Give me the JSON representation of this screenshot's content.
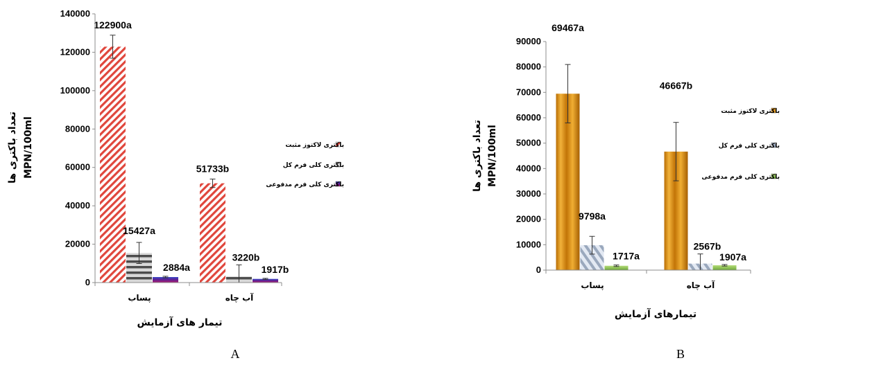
{
  "chart_data": [
    {
      "type": "bar",
      "panel_label": "A",
      "categories": [
        "پساب",
        "آب چاه"
      ],
      "xlabel": "تیمار های آزمایش",
      "ylabel_line1": "تعداد باکتری ها",
      "ylabel_line2": "MPN/100ml",
      "ylim": [
        0,
        140000
      ],
      "yticks": [
        0,
        20000,
        40000,
        60000,
        80000,
        100000,
        120000,
        140000
      ],
      "grid": false,
      "legend_position": "right",
      "series": [
        {
          "name": "باکتری لاکتوز مثبت",
          "color": "#e0463c",
          "pattern": "diagonal-hatch",
          "values": [
            122900,
            51733
          ],
          "errors": [
            6000,
            2200
          ],
          "labels": [
            "122900a",
            "51733b"
          ]
        },
        {
          "name": "باکتری کلی فرم کل",
          "color": "#7a7a7a",
          "pattern": "horizontal-stripes",
          "values": [
            15427,
            3220
          ],
          "errors": [
            5500,
            6000
          ],
          "labels": [
            "15427a",
            "3220b"
          ]
        },
        {
          "name": "باکتری کلی فرم مدفوعی",
          "color": "#5a2296",
          "pattern": "solid",
          "values": [
            2884,
            1917
          ],
          "errors": [
            400,
            300
          ],
          "labels": [
            "2884a",
            "1917b"
          ]
        }
      ]
    },
    {
      "type": "bar",
      "panel_label": "B",
      "categories": [
        "پساب",
        "آب چاه"
      ],
      "xlabel": "تیمارهای آزمایش",
      "ylabel_line1": "تعداد باکتری ها",
      "ylabel_line2": "MPN/100ml",
      "ylim": [
        0,
        90000
      ],
      "yticks": [
        0,
        10000,
        20000,
        30000,
        40000,
        50000,
        60000,
        70000,
        80000,
        90000
      ],
      "grid": false,
      "legend_position": "right",
      "series": [
        {
          "name": "باکتری لاکتوز مثبت",
          "color": "#d88a0c",
          "pattern": "vertical-gradient",
          "values": [
            69467,
            46667
          ],
          "errors": [
            11500,
            11500
          ],
          "labels": [
            "69467a",
            "46667b"
          ]
        },
        {
          "name": "باکتری کلی فرم کل",
          "color": "#5b86c4",
          "pattern": "diagonal-gradient",
          "values": [
            9798,
            2567
          ],
          "errors": [
            3500,
            3800
          ],
          "labels": [
            "9798a",
            "2567b"
          ]
        },
        {
          "name": "باکتری کلی فرم مدفوعی",
          "color": "#8cc04e",
          "pattern": "green-gradient",
          "values": [
            1717,
            1907
          ],
          "errors": [
            300,
            300
          ],
          "labels": [
            "1717a",
            "1907a"
          ]
        }
      ]
    }
  ]
}
